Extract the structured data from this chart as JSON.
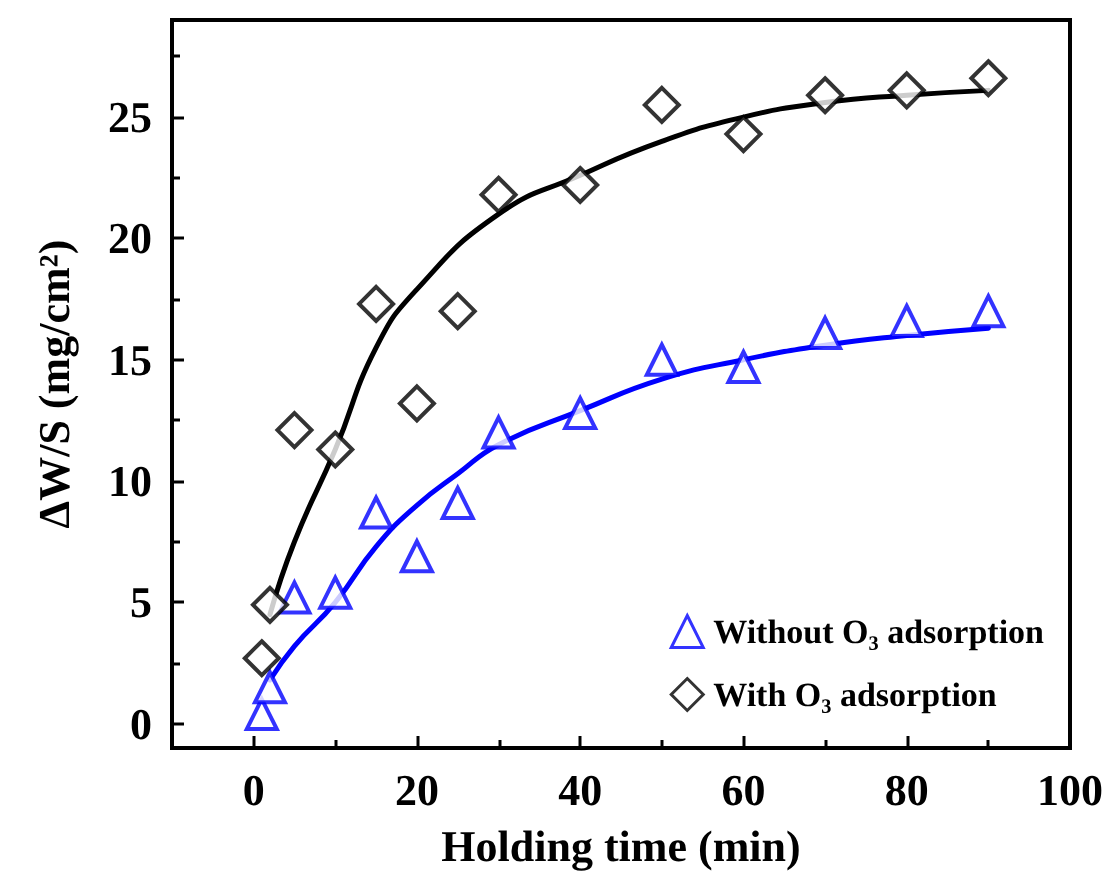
{
  "chart_data": {
    "type": "scatter",
    "xlabel": "Holding time (min)",
    "ylabel": "ΔW/S (mg/cm²)",
    "xlim": [
      -10,
      100
    ],
    "xticks": [
      0,
      20,
      40,
      60,
      80,
      100
    ],
    "ylim": [
      -1,
      29
    ],
    "yticks": [
      0,
      5,
      10,
      15,
      20,
      25
    ],
    "grid": false,
    "legend": "bottom right",
    "series": [
      {
        "name": "Without O₃ adsorption",
        "marker": "triangle",
        "color": "#0000ff",
        "x": [
          1,
          2,
          5,
          10,
          15,
          20,
          25,
          30,
          40,
          50,
          60,
          70,
          80,
          90
        ],
        "values": [
          0.4,
          1.5,
          5.2,
          5.4,
          8.7,
          6.9,
          9.1,
          12.0,
          12.8,
          15.0,
          14.7,
          16.1,
          16.6,
          17.0
        ]
      },
      {
        "name": "With O₃ adsorption",
        "marker": "diamond",
        "color": "#000000",
        "x": [
          1,
          2,
          5,
          10,
          15,
          20,
          25,
          30,
          40,
          50,
          60,
          70,
          80,
          90
        ],
        "values": [
          2.7,
          4.9,
          12.1,
          11.3,
          17.3,
          13.2,
          17.0,
          21.8,
          22.2,
          25.5,
          24.3,
          25.9,
          26.1,
          26.6
        ]
      },
      {
        "type": "line",
        "marker": "none",
        "color": "#0000ff",
        "x": [
          2,
          5,
          10,
          15,
          20,
          25,
          30,
          40,
          50,
          60,
          70,
          80,
          90
        ],
        "values": [
          1.8,
          3.2,
          5.0,
          7.3,
          9.0,
          10.3,
          11.5,
          12.9,
          14.2,
          15.0,
          15.6,
          16.0,
          16.3
        ]
      },
      {
        "type": "line",
        "marker": "none",
        "color": "#000000",
        "x": [
          2,
          5,
          10,
          15,
          20,
          30,
          40,
          50,
          60,
          70,
          80,
          90
        ],
        "values": [
          4.5,
          7.5,
          11.3,
          15.5,
          17.9,
          21.0,
          22.6,
          24.0,
          25.0,
          25.6,
          25.9,
          26.1
        ]
      }
    ]
  }
}
